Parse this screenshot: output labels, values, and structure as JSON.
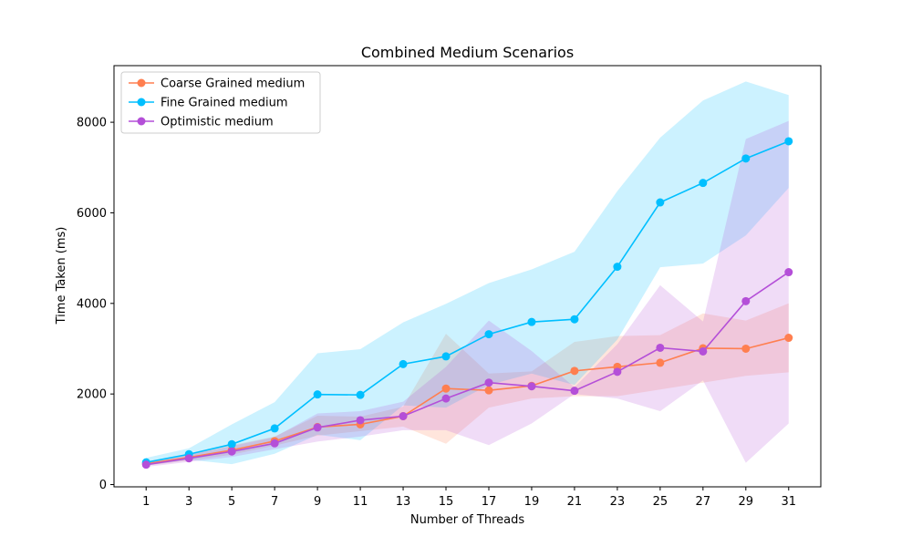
{
  "chart_data": {
    "type": "line",
    "title": "Combined Medium Scenarios",
    "xlabel": "Number of Threads",
    "ylabel": "Time Taken (ms)",
    "x": [
      1,
      3,
      5,
      7,
      9,
      11,
      13,
      15,
      17,
      19,
      21,
      23,
      25,
      27,
      29,
      31
    ],
    "xlim": [
      -0.5,
      32.5
    ],
    "ylim": [
      -50,
      9250
    ],
    "yticks": [
      0,
      2000,
      4000,
      6000,
      8000
    ],
    "grid": false,
    "legend_position": "top-left",
    "series": [
      {
        "name": "Coarse Grained medium",
        "color": "#ff7f50",
        "values": [
          460,
          600,
          760,
          960,
          1270,
          1330,
          1510,
          2120,
          2080,
          2180,
          2510,
          2600,
          2690,
          3010,
          3000,
          3240
        ],
        "band_lower": [
          420,
          530,
          660,
          860,
          1080,
          1180,
          1280,
          900,
          1700,
          1900,
          1950,
          1950,
          2100,
          2250,
          2400,
          2480
        ],
        "band_upper": [
          500,
          680,
          870,
          1060,
          1520,
          1500,
          1720,
          3330,
          2450,
          2500,
          3150,
          3280,
          3300,
          3780,
          3620,
          4000
        ]
      },
      {
        "name": "Fine Grained medium",
        "color": "#00bfff",
        "values": [
          490,
          670,
          890,
          1240,
          1990,
          1980,
          2660,
          2830,
          3320,
          3590,
          3650,
          4810,
          6230,
          6660,
          7200,
          7580
        ],
        "band_lower": [
          420,
          550,
          450,
          680,
          1100,
          980,
          1750,
          1700,
          2200,
          2450,
          2200,
          3200,
          4800,
          4880,
          5500,
          6550
        ],
        "band_upper": [
          590,
          800,
          1330,
          1820,
          2900,
          2990,
          3580,
          3990,
          4450,
          4750,
          5140,
          6480,
          7660,
          8480,
          8900,
          8600
        ]
      },
      {
        "name": "Optimistic medium",
        "color": "#b44fd8",
        "values": [
          440,
          580,
          730,
          910,
          1260,
          1420,
          1510,
          1900,
          2250,
          2170,
          2070,
          2490,
          3020,
          2940,
          4050,
          4690
        ],
        "band_lower": [
          390,
          500,
          610,
          780,
          950,
          1060,
          1200,
          1200,
          870,
          1350,
          2000,
          1900,
          1620,
          2300,
          480,
          1350
        ],
        "band_upper": [
          490,
          660,
          850,
          1050,
          1570,
          1620,
          1830,
          2600,
          3620,
          2950,
          2150,
          3100,
          4400,
          3600,
          7630,
          8030
        ]
      }
    ]
  }
}
